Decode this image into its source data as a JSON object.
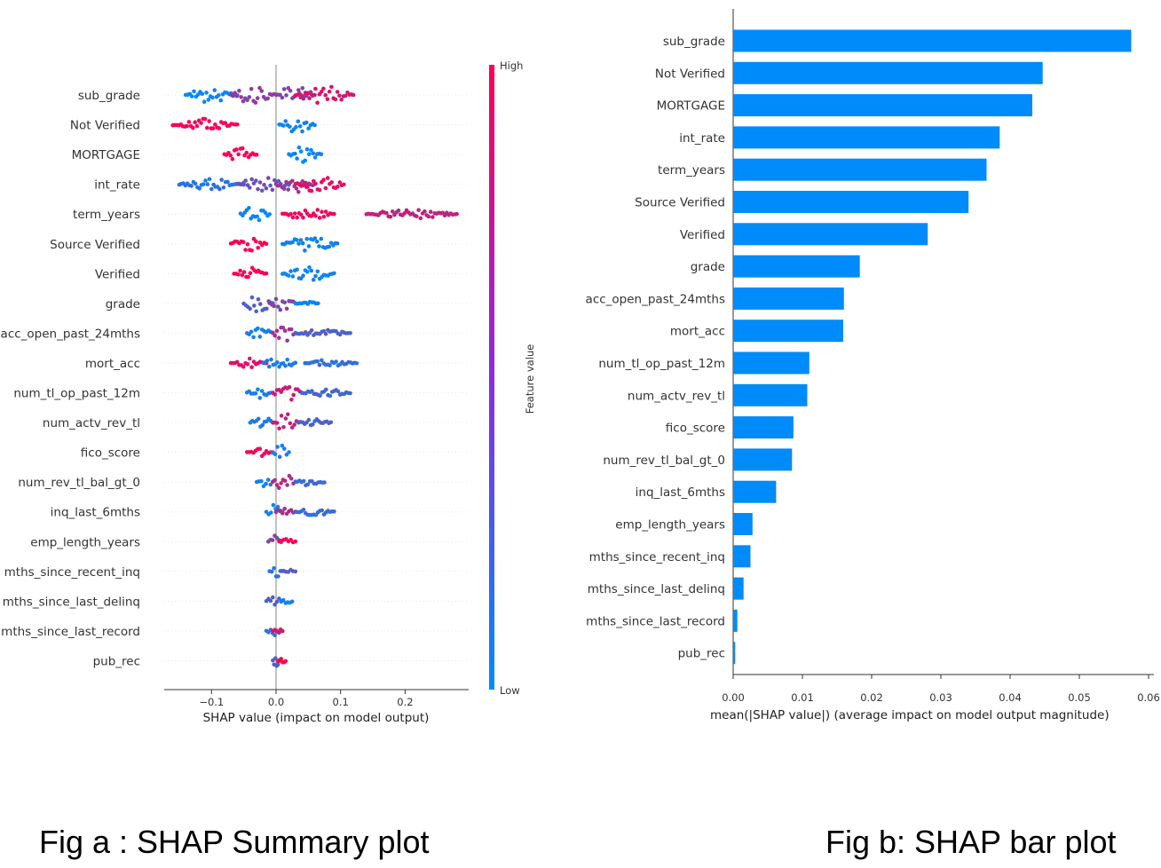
{
  "chart_data": [
    {
      "type": "scatter",
      "kind": "SHAP beeswarm summary",
      "features": [
        "sub_grade",
        "Not Verified",
        "MORTGAGE",
        "int_rate",
        "term_years",
        "Source Verified",
        "Verified",
        "grade",
        "acc_open_past_24mths",
        "mort_acc",
        "num_tl_op_past_12m",
        "num_actv_rev_tl",
        "fico_score",
        "num_rev_tl_bal_gt_0",
        "inq_last_6mths",
        "emp_length_years",
        "mths_since_recent_inq",
        "mths_since_last_delinq",
        "mths_since_last_record",
        "pub_rec"
      ],
      "xticks": [
        -0.1,
        0.0,
        0.1,
        0.2
      ],
      "xtick_labels": [
        "−0.1",
        "0.0",
        "0.1",
        "0.2"
      ],
      "xlim": [
        -0.175,
        0.3
      ],
      "xlabel": "SHAP value (impact on model output)",
      "colorbar": {
        "label": "Feature value",
        "high": "High",
        "low": "Low",
        "high_color": "#ff0052",
        "low_color": "#008bfb"
      },
      "spreads": [
        [
          {
            "x0": -0.14,
            "x1": -0.06,
            "c": 0.05,
            "w": 9
          },
          {
            "x0": -0.07,
            "x1": 0.0,
            "c": 0.55,
            "w": 10
          },
          {
            "x0": 0.0,
            "x1": 0.06,
            "c": 0.5,
            "w": 11
          },
          {
            "x0": 0.03,
            "x1": 0.12,
            "c": 0.85,
            "w": 10
          }
        ],
        [
          {
            "x0": -0.16,
            "x1": -0.06,
            "c": 1.0,
            "w": 7
          },
          {
            "x0": 0.005,
            "x1": 0.06,
            "c": 0.05,
            "w": 9
          }
        ],
        [
          {
            "x0": -0.08,
            "x1": -0.03,
            "c": 1.0,
            "w": 8
          },
          {
            "x0": 0.02,
            "x1": 0.07,
            "c": 0.05,
            "w": 10
          }
        ],
        [
          {
            "x0": -0.15,
            "x1": -0.05,
            "c": 0.15,
            "w": 6
          },
          {
            "x0": -0.06,
            "x1": 0.02,
            "c": 0.4,
            "w": 9
          },
          {
            "x0": 0.0,
            "x1": 0.06,
            "c": 0.6,
            "w": 10
          },
          {
            "x0": 0.03,
            "x1": 0.105,
            "c": 0.9,
            "w": 9
          }
        ],
        [
          {
            "x0": -0.055,
            "x1": -0.01,
            "c": 0.05,
            "w": 9
          },
          {
            "x0": 0.01,
            "x1": 0.09,
            "c": 0.95,
            "w": 7
          },
          {
            "x0": 0.14,
            "x1": 0.28,
            "c": 0.75,
            "w": 5
          }
        ],
        [
          {
            "x0": -0.07,
            "x1": -0.015,
            "c": 1.0,
            "w": 8
          },
          {
            "x0": 0.01,
            "x1": 0.095,
            "c": 0.05,
            "w": 8
          }
        ],
        [
          {
            "x0": -0.065,
            "x1": -0.015,
            "c": 1.0,
            "w": 7
          },
          {
            "x0": 0.01,
            "x1": 0.09,
            "c": 0.05,
            "w": 8
          }
        ],
        [
          {
            "x0": -0.05,
            "x1": -0.005,
            "c": 0.3,
            "w": 10
          },
          {
            "x0": -0.01,
            "x1": 0.03,
            "c": 0.5,
            "w": 9
          },
          {
            "x0": 0.03,
            "x1": 0.065,
            "c": 0.05,
            "w": 3
          }
        ],
        [
          {
            "x0": -0.045,
            "x1": -0.005,
            "c": 0.1,
            "w": 8
          },
          {
            "x0": -0.005,
            "x1": 0.03,
            "c": 0.65,
            "w": 10
          },
          {
            "x0": 0.03,
            "x1": 0.115,
            "c": 0.3,
            "w": 4
          }
        ],
        [
          {
            "x0": -0.07,
            "x1": -0.015,
            "c": 0.9,
            "w": 5
          },
          {
            "x0": -0.02,
            "x1": 0.03,
            "c": 0.1,
            "w": 8
          },
          {
            "x0": 0.045,
            "x1": 0.125,
            "c": 0.2,
            "w": 4
          }
        ],
        [
          {
            "x0": -0.045,
            "x1": -0.005,
            "c": 0.1,
            "w": 6
          },
          {
            "x0": -0.005,
            "x1": 0.04,
            "c": 0.8,
            "w": 9
          },
          {
            "x0": 0.04,
            "x1": 0.115,
            "c": 0.25,
            "w": 4
          }
        ],
        [
          {
            "x0": -0.04,
            "x1": -0.005,
            "c": 0.1,
            "w": 8
          },
          {
            "x0": -0.005,
            "x1": 0.035,
            "c": 0.75,
            "w": 10
          },
          {
            "x0": 0.035,
            "x1": 0.085,
            "c": 0.3,
            "w": 4
          }
        ],
        [
          {
            "x0": -0.045,
            "x1": -0.005,
            "c": 0.95,
            "w": 5
          },
          {
            "x0": -0.005,
            "x1": 0.02,
            "c": 0.1,
            "w": 8
          }
        ],
        [
          {
            "x0": -0.03,
            "x1": -0.005,
            "c": 0.1,
            "w": 7
          },
          {
            "x0": -0.005,
            "x1": 0.03,
            "c": 0.7,
            "w": 10
          },
          {
            "x0": 0.03,
            "x1": 0.075,
            "c": 0.25,
            "w": 4
          }
        ],
        [
          {
            "x0": -0.015,
            "x1": 0.01,
            "c": 0.05,
            "w": 8
          },
          {
            "x0": 0.0,
            "x1": 0.03,
            "c": 0.7,
            "w": 6
          },
          {
            "x0": 0.03,
            "x1": 0.09,
            "c": 0.2,
            "w": 4
          }
        ],
        [
          {
            "x0": -0.012,
            "x1": 0.008,
            "c": 0.5,
            "w": 9
          },
          {
            "x0": 0.005,
            "x1": 0.03,
            "c": 0.95,
            "w": 4
          }
        ],
        [
          {
            "x0": -0.01,
            "x1": 0.01,
            "c": 0.2,
            "w": 8
          },
          {
            "x0": 0.008,
            "x1": 0.03,
            "c": 0.35,
            "w": 3
          }
        ],
        [
          {
            "x0": -0.015,
            "x1": 0.008,
            "c": 0.3,
            "w": 7
          },
          {
            "x0": 0.008,
            "x1": 0.025,
            "c": 0.05,
            "w": 3
          }
        ],
        [
          {
            "x0": -0.015,
            "x1": 0.008,
            "c": 0.2,
            "w": 6
          },
          {
            "x0": -0.005,
            "x1": 0.01,
            "c": 0.85,
            "w": 4
          }
        ],
        [
          {
            "x0": -0.005,
            "x1": 0.005,
            "c": 0.3,
            "w": 8
          },
          {
            "x0": 0.003,
            "x1": 0.015,
            "c": 1.0,
            "w": 3
          }
        ]
      ]
    },
    {
      "type": "bar",
      "orientation": "horizontal",
      "categories": [
        "sub_grade",
        "Not Verified",
        "MORTGAGE",
        "int_rate",
        "term_years",
        "Source Verified",
        "Verified",
        "grade",
        "acc_open_past_24mths",
        "mort_acc",
        "num_tl_op_past_12m",
        "num_actv_rev_tl",
        "fico_score",
        "num_rev_tl_bal_gt_0",
        "inq_last_6mths",
        "emp_length_years",
        "mths_since_recent_inq",
        "mths_since_last_delinq",
        "mths_since_last_record",
        "pub_rec"
      ],
      "values": [
        0.0575,
        0.0447,
        0.0432,
        0.0385,
        0.0366,
        0.034,
        0.0281,
        0.0183,
        0.016,
        0.0159,
        0.011,
        0.0107,
        0.0087,
        0.0085,
        0.0062,
        0.0028,
        0.0025,
        0.0015,
        0.0006,
        0.0003
      ],
      "xticks": [
        0.0,
        0.01,
        0.02,
        0.03,
        0.04,
        0.05,
        0.06
      ],
      "xtick_labels": [
        "0.00",
        "0.01",
        "0.02",
        "0.03",
        "0.04",
        "0.05",
        "0.06"
      ],
      "xlim": [
        0,
        0.06
      ],
      "xlabel": "mean(|SHAP value|) (average impact on model output magnitude)",
      "bar_color": "#008bfb"
    }
  ],
  "captions": {
    "a": "Fig a :  SHAP Summary plot",
    "b": "Fig b:   SHAP bar plot"
  }
}
